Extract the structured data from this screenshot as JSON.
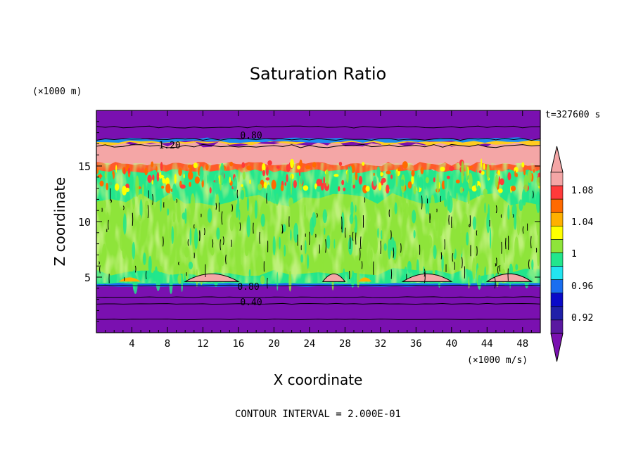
{
  "chart_data": {
    "type": "heatmap",
    "title": "Saturation Ratio",
    "time_label": "t=327600 s",
    "xlabel": "X coordinate",
    "ylabel": "Z coordinate",
    "x_unit": "(×1000 m/s)",
    "y_unit": "(×1000 m)",
    "xlim": [
      0,
      50
    ],
    "ylim": [
      0,
      20
    ],
    "x_ticks": [
      "4",
      "8",
      "12",
      "16",
      "20",
      "24",
      "28",
      "32",
      "36",
      "40",
      "44",
      "48"
    ],
    "y_ticks": [
      "5",
      "10",
      "15"
    ],
    "contour_labels": [
      "0.80",
      "1.20",
      "0.80",
      "0.40"
    ],
    "footer": "CONTOUR INTERVAL = 2.000E-01",
    "colorbar": {
      "tick_labels": [
        "1.08",
        "1.04",
        "1",
        "0.96",
        "0.92"
      ],
      "levels": [
        0.9,
        0.92,
        0.94,
        0.96,
        0.98,
        1.0,
        1.02,
        1.04,
        1.06,
        1.08,
        1.1
      ],
      "colors": [
        "#5a18a0",
        "#2020a8",
        "#0a0ac8",
        "#1a6ef0",
        "#22e4f0",
        "#22e68c",
        "#8ee43a",
        "#ffff00",
        "#ffb000",
        "#ff6a00",
        "#ff3a3a",
        "#f4a6a6"
      ],
      "under_color": "#7a10b0",
      "over_color": "#f4a6a6"
    },
    "regions": {
      "bottom_stable_layer_top_km": 4.3,
      "top_dry_layer_base_km": 17.2,
      "supersaturated_layer_km": [
        14.8,
        17.0
      ],
      "cloud_layer_km": [
        4.4,
        14.5
      ]
    },
    "colors": {
      "dry": "#7a10b0",
      "near_one": "#22e68c",
      "slightly_above": "#8ee43a",
      "high": "#f4a6a6"
    }
  }
}
